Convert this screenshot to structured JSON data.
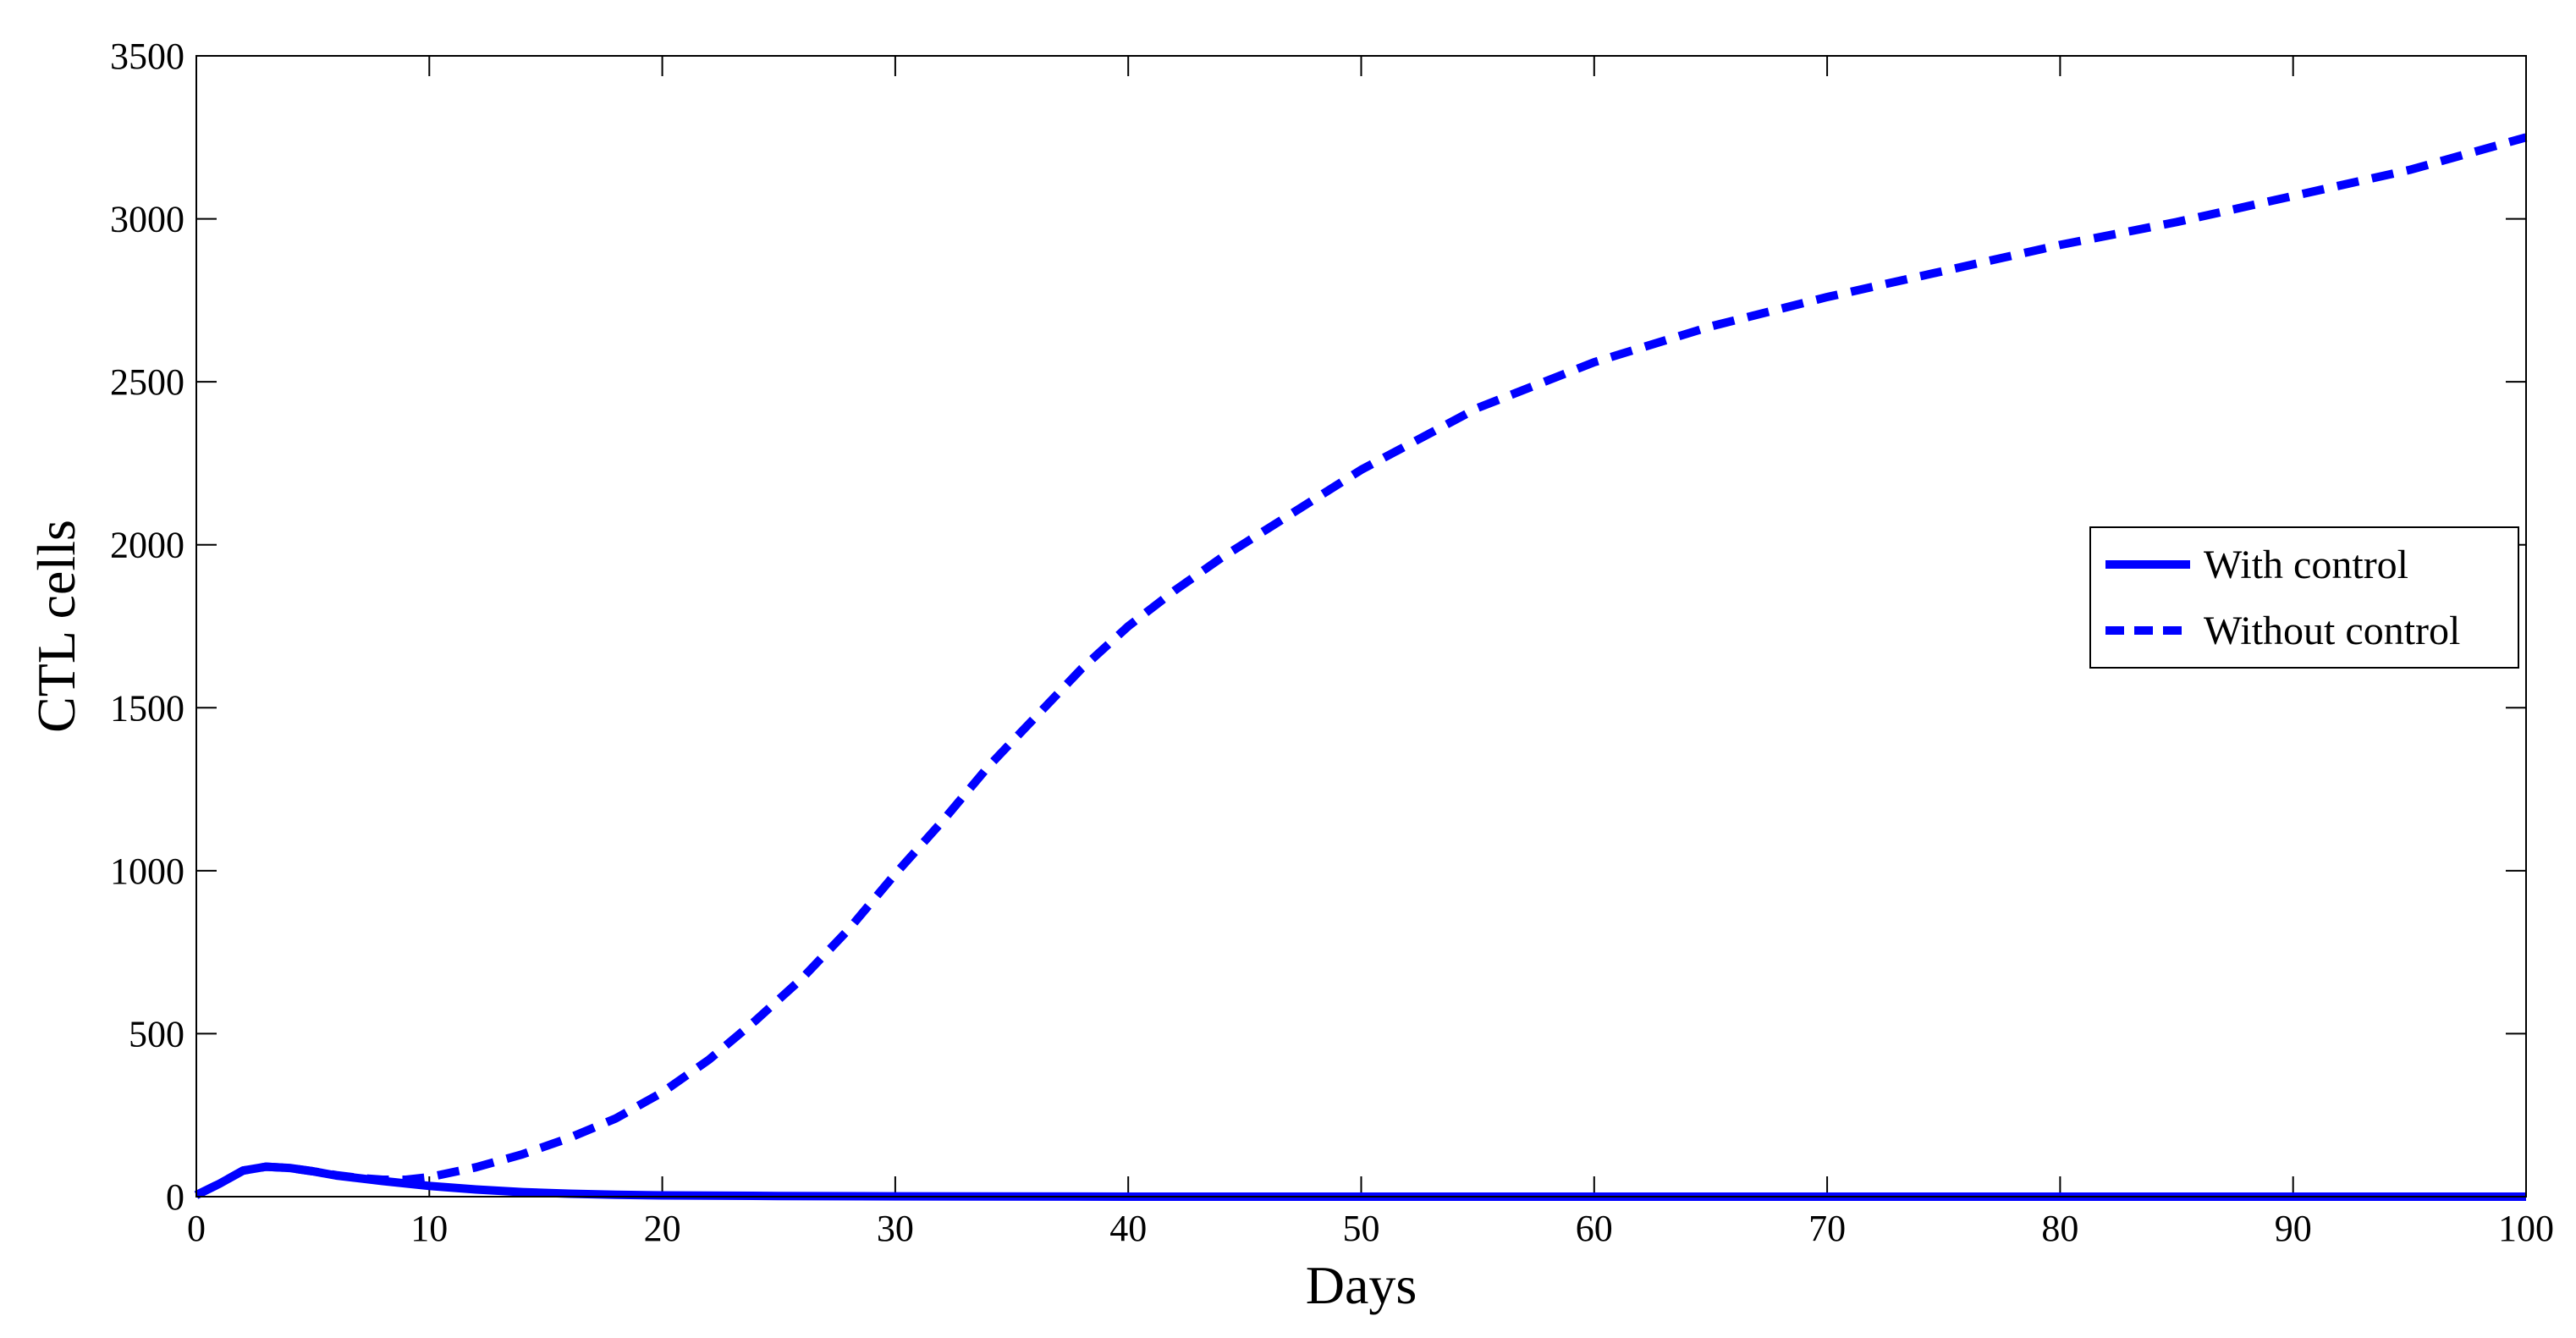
{
  "chart_data": {
    "type": "line",
    "title": "",
    "xlabel": "Days",
    "ylabel": "CTL cells",
    "xlim": [
      0,
      100
    ],
    "ylim": [
      0,
      3500
    ],
    "xticks": [
      0,
      10,
      20,
      30,
      40,
      50,
      60,
      70,
      80,
      90,
      100
    ],
    "yticks": [
      0,
      500,
      1000,
      1500,
      2000,
      2500,
      3000,
      3500
    ],
    "grid": false,
    "legend_position": "right",
    "line_color": "#0000ff",
    "series": [
      {
        "name": "With control",
        "style": "solid",
        "x": [
          0,
          1,
          2,
          3,
          4,
          5,
          6,
          8,
          10,
          12,
          14,
          16,
          18,
          20,
          25,
          30,
          40,
          50,
          60,
          70,
          80,
          90,
          100
        ],
        "y": [
          5,
          40,
          80,
          92,
          88,
          78,
          65,
          48,
          33,
          22,
          14,
          9,
          6,
          4,
          2,
          1,
          0,
          0,
          0,
          0,
          0,
          0,
          0
        ]
      },
      {
        "name": "Without control",
        "style": "dashed",
        "x": [
          0,
          1,
          2,
          3,
          4,
          5,
          6,
          7,
          8,
          9,
          10,
          12,
          14,
          16,
          18,
          20,
          22,
          24,
          26,
          28,
          30,
          32,
          34,
          36,
          38,
          40,
          42,
          44,
          46,
          48,
          50,
          55,
          60,
          65,
          70,
          75,
          80,
          85,
          90,
          95,
          100
        ],
        "y": [
          5,
          40,
          80,
          92,
          88,
          78,
          66,
          57,
          52,
          52,
          60,
          90,
          130,
          180,
          240,
          320,
          420,
          540,
          670,
          820,
          990,
          1150,
          1320,
          1470,
          1620,
          1750,
          1860,
          1960,
          2050,
          2140,
          2230,
          2420,
          2560,
          2670,
          2760,
          2840,
          2920,
          2990,
          3070,
          3150,
          3250
        ]
      }
    ]
  }
}
